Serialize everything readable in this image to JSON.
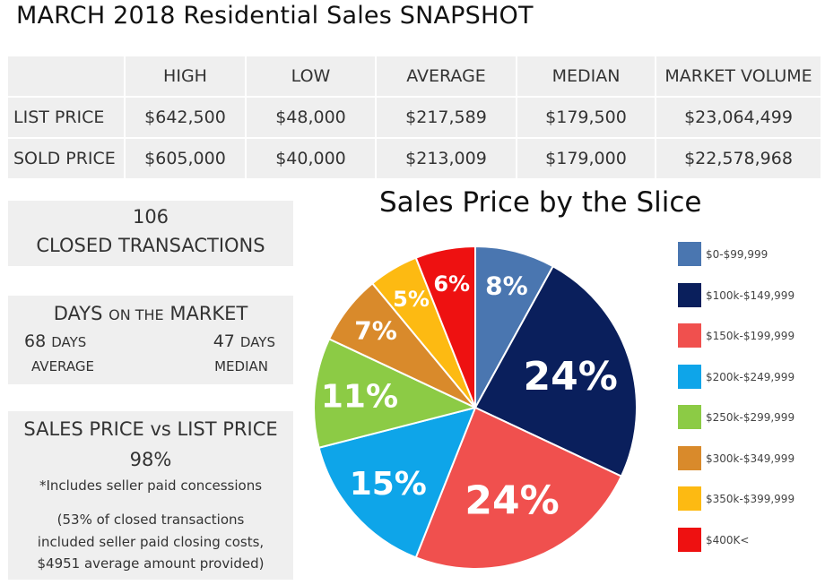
{
  "title": "MARCH 2018 Residential Sales SNAPSHOT",
  "table": {
    "headers": [
      "",
      "HIGH",
      "LOW",
      "AVERAGE",
      "MEDIAN",
      "MARKET VOLUME"
    ],
    "rows": [
      [
        "LIST PRICE",
        "$642,500",
        "$48,000",
        "$217,589",
        "$179,500",
        "$23,064,499"
      ],
      [
        "SOLD PRICE",
        "$605,000",
        "$40,000",
        "$213,009",
        "$179,000",
        "$22,578,968"
      ]
    ]
  },
  "closed": {
    "count": "106",
    "label": "CLOSED TRANSACTIONS"
  },
  "dom": {
    "title_a": "DAYS ",
    "title_b": "ON THE",
    "title_c": " MARKET",
    "avg_value": "68 ",
    "avg_unit": "DAYS",
    "avg_label": "AVERAGE",
    "med_value": "47 ",
    "med_unit": "DAYS",
    "med_label": "MEDIAN"
  },
  "ratio": {
    "title": "SALES PRICE  vs  LIST PRICE",
    "percent": "98%",
    "note": "*Includes seller paid concessions",
    "para1": "(53% of closed transactions",
    "para2": "included seller paid closing costs,",
    "para3": "$4951 average amount provided)"
  },
  "chart_data": {
    "type": "pie",
    "title": "Sales Price by the Slice",
    "categories": [
      "$0-$99,999",
      "$100k-$149,999",
      "$150k-$199,999",
      "$200k-$249,999",
      "$250k-$299,999",
      "$300k-$349,999",
      "$350k-$399,999",
      "$400K<"
    ],
    "values": [
      8,
      24,
      24,
      15,
      11,
      7,
      5,
      6
    ],
    "labels": [
      "8%",
      "24%",
      "24%",
      "15%",
      "11%",
      "7%",
      "5%",
      "6%"
    ],
    "colors": [
      "#4A76B0",
      "#0A1F5C",
      "#F0504E",
      "#0EA5E9",
      "#8CCB45",
      "#D98A2B",
      "#FDBA12",
      "#EE1111"
    ],
    "legend_position": "right"
  }
}
